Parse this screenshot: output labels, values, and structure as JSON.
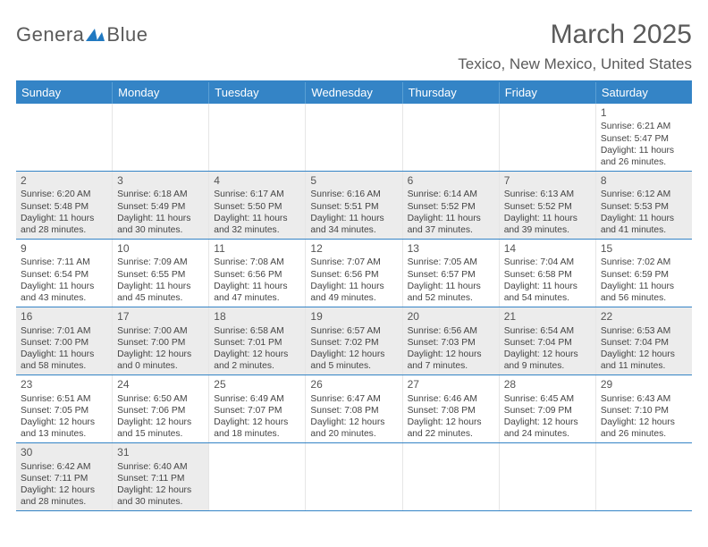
{
  "logo": {
    "text_a": "Genera",
    "text_b": "Blue"
  },
  "title": "March 2025",
  "location": "Texico, New Mexico, United States",
  "colors": {
    "header_bg": "#3484c6",
    "header_text": "#ffffff",
    "alt_row": "#ececec",
    "body_text": "#444444",
    "title_text": "#5a5a5a",
    "rule": "#3484c6"
  },
  "fonts": {
    "title_size_pt": 30,
    "dayhead_size_pt": 13,
    "cell_size_pt": 10.3
  },
  "days_of_week": [
    "Sunday",
    "Monday",
    "Tuesday",
    "Wednesday",
    "Thursday",
    "Friday",
    "Saturday"
  ],
  "weeks": [
    {
      "alt": false,
      "cells": [
        {
          "empty": true
        },
        {
          "empty": true
        },
        {
          "empty": true
        },
        {
          "empty": true
        },
        {
          "empty": true
        },
        {
          "empty": true
        },
        {
          "day": "1",
          "sunrise": "Sunrise: 6:21 AM",
          "sunset": "Sunset: 5:47 PM",
          "dl1": "Daylight: 11 hours",
          "dl2": "and 26 minutes."
        }
      ]
    },
    {
      "alt": true,
      "cells": [
        {
          "day": "2",
          "sunrise": "Sunrise: 6:20 AM",
          "sunset": "Sunset: 5:48 PM",
          "dl1": "Daylight: 11 hours",
          "dl2": "and 28 minutes."
        },
        {
          "day": "3",
          "sunrise": "Sunrise: 6:18 AM",
          "sunset": "Sunset: 5:49 PM",
          "dl1": "Daylight: 11 hours",
          "dl2": "and 30 minutes."
        },
        {
          "day": "4",
          "sunrise": "Sunrise: 6:17 AM",
          "sunset": "Sunset: 5:50 PM",
          "dl1": "Daylight: 11 hours",
          "dl2": "and 32 minutes."
        },
        {
          "day": "5",
          "sunrise": "Sunrise: 6:16 AM",
          "sunset": "Sunset: 5:51 PM",
          "dl1": "Daylight: 11 hours",
          "dl2": "and 34 minutes."
        },
        {
          "day": "6",
          "sunrise": "Sunrise: 6:14 AM",
          "sunset": "Sunset: 5:52 PM",
          "dl1": "Daylight: 11 hours",
          "dl2": "and 37 minutes."
        },
        {
          "day": "7",
          "sunrise": "Sunrise: 6:13 AM",
          "sunset": "Sunset: 5:52 PM",
          "dl1": "Daylight: 11 hours",
          "dl2": "and 39 minutes."
        },
        {
          "day": "8",
          "sunrise": "Sunrise: 6:12 AM",
          "sunset": "Sunset: 5:53 PM",
          "dl1": "Daylight: 11 hours",
          "dl2": "and 41 minutes."
        }
      ]
    },
    {
      "alt": false,
      "cells": [
        {
          "day": "9",
          "sunrise": "Sunrise: 7:11 AM",
          "sunset": "Sunset: 6:54 PM",
          "dl1": "Daylight: 11 hours",
          "dl2": "and 43 minutes."
        },
        {
          "day": "10",
          "sunrise": "Sunrise: 7:09 AM",
          "sunset": "Sunset: 6:55 PM",
          "dl1": "Daylight: 11 hours",
          "dl2": "and 45 minutes."
        },
        {
          "day": "11",
          "sunrise": "Sunrise: 7:08 AM",
          "sunset": "Sunset: 6:56 PM",
          "dl1": "Daylight: 11 hours",
          "dl2": "and 47 minutes."
        },
        {
          "day": "12",
          "sunrise": "Sunrise: 7:07 AM",
          "sunset": "Sunset: 6:56 PM",
          "dl1": "Daylight: 11 hours",
          "dl2": "and 49 minutes."
        },
        {
          "day": "13",
          "sunrise": "Sunrise: 7:05 AM",
          "sunset": "Sunset: 6:57 PM",
          "dl1": "Daylight: 11 hours",
          "dl2": "and 52 minutes."
        },
        {
          "day": "14",
          "sunrise": "Sunrise: 7:04 AM",
          "sunset": "Sunset: 6:58 PM",
          "dl1": "Daylight: 11 hours",
          "dl2": "and 54 minutes."
        },
        {
          "day": "15",
          "sunrise": "Sunrise: 7:02 AM",
          "sunset": "Sunset: 6:59 PM",
          "dl1": "Daylight: 11 hours",
          "dl2": "and 56 minutes."
        }
      ]
    },
    {
      "alt": true,
      "cells": [
        {
          "day": "16",
          "sunrise": "Sunrise: 7:01 AM",
          "sunset": "Sunset: 7:00 PM",
          "dl1": "Daylight: 11 hours",
          "dl2": "and 58 minutes."
        },
        {
          "day": "17",
          "sunrise": "Sunrise: 7:00 AM",
          "sunset": "Sunset: 7:00 PM",
          "dl1": "Daylight: 12 hours",
          "dl2": "and 0 minutes."
        },
        {
          "day": "18",
          "sunrise": "Sunrise: 6:58 AM",
          "sunset": "Sunset: 7:01 PM",
          "dl1": "Daylight: 12 hours",
          "dl2": "and 2 minutes."
        },
        {
          "day": "19",
          "sunrise": "Sunrise: 6:57 AM",
          "sunset": "Sunset: 7:02 PM",
          "dl1": "Daylight: 12 hours",
          "dl2": "and 5 minutes."
        },
        {
          "day": "20",
          "sunrise": "Sunrise: 6:56 AM",
          "sunset": "Sunset: 7:03 PM",
          "dl1": "Daylight: 12 hours",
          "dl2": "and 7 minutes."
        },
        {
          "day": "21",
          "sunrise": "Sunrise: 6:54 AM",
          "sunset": "Sunset: 7:04 PM",
          "dl1": "Daylight: 12 hours",
          "dl2": "and 9 minutes."
        },
        {
          "day": "22",
          "sunrise": "Sunrise: 6:53 AM",
          "sunset": "Sunset: 7:04 PM",
          "dl1": "Daylight: 12 hours",
          "dl2": "and 11 minutes."
        }
      ]
    },
    {
      "alt": false,
      "cells": [
        {
          "day": "23",
          "sunrise": "Sunrise: 6:51 AM",
          "sunset": "Sunset: 7:05 PM",
          "dl1": "Daylight: 12 hours",
          "dl2": "and 13 minutes."
        },
        {
          "day": "24",
          "sunrise": "Sunrise: 6:50 AM",
          "sunset": "Sunset: 7:06 PM",
          "dl1": "Daylight: 12 hours",
          "dl2": "and 15 minutes."
        },
        {
          "day": "25",
          "sunrise": "Sunrise: 6:49 AM",
          "sunset": "Sunset: 7:07 PM",
          "dl1": "Daylight: 12 hours",
          "dl2": "and 18 minutes."
        },
        {
          "day": "26",
          "sunrise": "Sunrise: 6:47 AM",
          "sunset": "Sunset: 7:08 PM",
          "dl1": "Daylight: 12 hours",
          "dl2": "and 20 minutes."
        },
        {
          "day": "27",
          "sunrise": "Sunrise: 6:46 AM",
          "sunset": "Sunset: 7:08 PM",
          "dl1": "Daylight: 12 hours",
          "dl2": "and 22 minutes."
        },
        {
          "day": "28",
          "sunrise": "Sunrise: 6:45 AM",
          "sunset": "Sunset: 7:09 PM",
          "dl1": "Daylight: 12 hours",
          "dl2": "and 24 minutes."
        },
        {
          "day": "29",
          "sunrise": "Sunrise: 6:43 AM",
          "sunset": "Sunset: 7:10 PM",
          "dl1": "Daylight: 12 hours",
          "dl2": "and 26 minutes."
        }
      ]
    },
    {
      "alt": true,
      "cells": [
        {
          "day": "30",
          "sunrise": "Sunrise: 6:42 AM",
          "sunset": "Sunset: 7:11 PM",
          "dl1": "Daylight: 12 hours",
          "dl2": "and 28 minutes."
        },
        {
          "day": "31",
          "sunrise": "Sunrise: 6:40 AM",
          "sunset": "Sunset: 7:11 PM",
          "dl1": "Daylight: 12 hours",
          "dl2": "and 30 minutes."
        },
        {
          "empty": true
        },
        {
          "empty": true
        },
        {
          "empty": true
        },
        {
          "empty": true
        },
        {
          "empty": true
        }
      ]
    }
  ]
}
